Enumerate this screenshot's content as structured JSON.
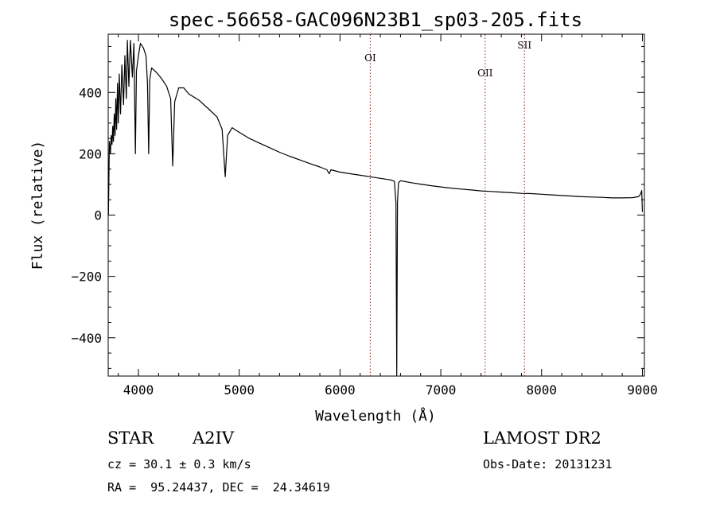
{
  "chart_data": {
    "type": "line",
    "title": "spec-56658-GAC096N23B1_sp03-205.fits",
    "xlabel": "Wavelength (Å)",
    "ylabel": "Flux (relative)",
    "xlim": [
      3700,
      9020
    ],
    "ylim": [
      -525,
      590
    ],
    "xticks": [
      4000,
      5000,
      6000,
      7000,
      8000,
      9000
    ],
    "xtick_labels": [
      "4000",
      "5000",
      "6000",
      "7000",
      "8000",
      "9000"
    ],
    "yticks": [
      -400,
      -200,
      0,
      200,
      400
    ],
    "ytick_labels": [
      "−400",
      "−200",
      "0",
      "200",
      "400"
    ],
    "grid": false,
    "line_color": "#000000",
    "marker_color": "#8b1a1a",
    "series": [
      {
        "values": [
          [
            3702,
            0
          ],
          [
            3712,
            240
          ],
          [
            3722,
            200
          ],
          [
            3730,
            260
          ],
          [
            3738,
            230
          ],
          [
            3745,
            290
          ],
          [
            3752,
            240
          ],
          [
            3760,
            330
          ],
          [
            3768,
            260
          ],
          [
            3776,
            380
          ],
          [
            3784,
            280
          ],
          [
            3792,
            430
          ],
          [
            3800,
            300
          ],
          [
            3810,
            460
          ],
          [
            3822,
            330
          ],
          [
            3836,
            490
          ],
          [
            3852,
            360
          ],
          [
            3866,
            520
          ],
          [
            3880,
            380
          ],
          [
            3890,
            570
          ],
          [
            3905,
            420
          ],
          [
            3920,
            570
          ],
          [
            3940,
            450
          ],
          [
            3955,
            560
          ],
          [
            3970,
            200
          ],
          [
            3980,
            470
          ],
          [
            4000,
            520
          ],
          [
            4020,
            560
          ],
          [
            4050,
            545
          ],
          [
            4075,
            520
          ],
          [
            4090,
            430
          ],
          [
            4102,
            200
          ],
          [
            4112,
            440
          ],
          [
            4130,
            480
          ],
          [
            4180,
            465
          ],
          [
            4230,
            445
          ],
          [
            4280,
            420
          ],
          [
            4320,
            380
          ],
          [
            4340,
            160
          ],
          [
            4360,
            370
          ],
          [
            4400,
            415
          ],
          [
            4450,
            415
          ],
          [
            4500,
            395
          ],
          [
            4600,
            375
          ],
          [
            4700,
            345
          ],
          [
            4780,
            320
          ],
          [
            4830,
            280
          ],
          [
            4861,
            125
          ],
          [
            4885,
            260
          ],
          [
            4930,
            285
          ],
          [
            5000,
            270
          ],
          [
            5100,
            250
          ],
          [
            5200,
            235
          ],
          [
            5300,
            220
          ],
          [
            5400,
            205
          ],
          [
            5500,
            192
          ],
          [
            5600,
            180
          ],
          [
            5700,
            168
          ],
          [
            5800,
            157
          ],
          [
            5870,
            148
          ],
          [
            5893,
            135
          ],
          [
            5910,
            148
          ],
          [
            6000,
            140
          ],
          [
            6100,
            135
          ],
          [
            6200,
            130
          ],
          [
            6300,
            125
          ],
          [
            6400,
            120
          ],
          [
            6500,
            115
          ],
          [
            6540,
            110
          ],
          [
            6555,
            40
          ],
          [
            6563,
            -525
          ],
          [
            6570,
            40
          ],
          [
            6580,
            105
          ],
          [
            6600,
            112
          ],
          [
            6700,
            106
          ],
          [
            6800,
            101
          ],
          [
            6900,
            96
          ],
          [
            7000,
            92
          ],
          [
            7100,
            88
          ],
          [
            7200,
            85
          ],
          [
            7300,
            82
          ],
          [
            7400,
            79
          ],
          [
            7500,
            77
          ],
          [
            7600,
            75
          ],
          [
            7700,
            73
          ],
          [
            7800,
            71
          ],
          [
            7900,
            70
          ],
          [
            8000,
            68
          ],
          [
            8100,
            66
          ],
          [
            8200,
            64
          ],
          [
            8300,
            62
          ],
          [
            8400,
            60
          ],
          [
            8500,
            59
          ],
          [
            8600,
            58
          ],
          [
            8700,
            56
          ],
          [
            8800,
            56
          ],
          [
            8900,
            57
          ],
          [
            8960,
            60
          ],
          [
            8975,
            65
          ],
          [
            8985,
            72
          ],
          [
            8993,
            80
          ],
          [
            9000,
            10
          ]
        ]
      }
    ],
    "lines": [
      {
        "label": "OI",
        "x": 6300
      },
      {
        "label": "OII",
        "x": 7440
      },
      {
        "label": "SII",
        "x": 7830
      }
    ]
  },
  "info": {
    "object_type": "STAR",
    "spectral_class": "A2IV",
    "survey": "LAMOST DR2",
    "cz": "cz = 30.1 ± 0.3 km/s",
    "obs_date": "Obs-Date: 20131231",
    "coords": "RA =  95.24437, DEC =  24.34619"
  }
}
